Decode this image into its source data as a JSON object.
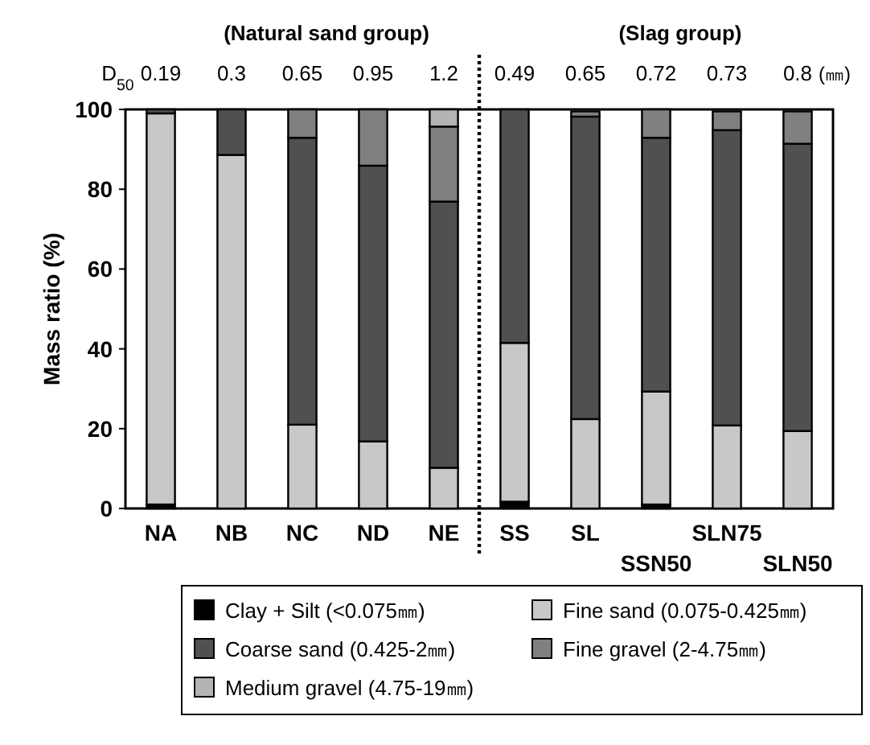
{
  "chart_data": {
    "type": "bar",
    "stacked": true,
    "ylabel": "Mass ratio (%)",
    "categories": [
      "NA",
      "NB",
      "NC",
      "ND",
      "NE",
      "SS",
      "SL",
      "SSN50",
      "SLN75",
      "SLN50"
    ],
    "series": [
      {
        "name": "Clay + Silt (<0.075㎜)",
        "color": "#000000",
        "values": [
          1,
          0,
          0,
          0,
          0,
          1.7,
          null,
          1,
          null,
          null
        ]
      },
      {
        "name": "Fine sand (0.075-0.425㎜)",
        "color": "#c8c8c8",
        "values": [
          98,
          88.6,
          21,
          16.8,
          10.2,
          39.8,
          22.4,
          28.3,
          20.8,
          19.4
        ]
      },
      {
        "name": "Coarse sand (0.425-2㎜)",
        "color": "#505050",
        "values": [
          1,
          11.4,
          71.9,
          69.1,
          66.7,
          58.5,
          75.8,
          63.6,
          74,
          72
        ]
      },
      {
        "name": "Fine gravel (2-4.75㎜)",
        "color": "#808080",
        "values": [
          0,
          0,
          7.1,
          14.1,
          18.8,
          0,
          1.3,
          7.1,
          4.7,
          8.1
        ]
      },
      {
        "name": "Medium gravel (4.75-19㎜)",
        "color": "#b4b4b4",
        "values": [
          0,
          0,
          0,
          0,
          4.3,
          0,
          0,
          0,
          0,
          0
        ]
      }
    ],
    "ylim": [
      0,
      100
    ],
    "yticks": [
      0,
      20,
      40,
      60,
      80,
      100
    ],
    "legend": "bottom",
    "grid": false,
    "annotations": [
      "(Natural sand group)",
      "(Slag group)",
      "D$_{50}$",
      "(㎜)",
      "0.19",
      "0.3",
      "0.65",
      "0.95",
      "1.2",
      "0.49",
      "0.65",
      "0.72",
      "0.73",
      "0.8"
    ]
  }
}
